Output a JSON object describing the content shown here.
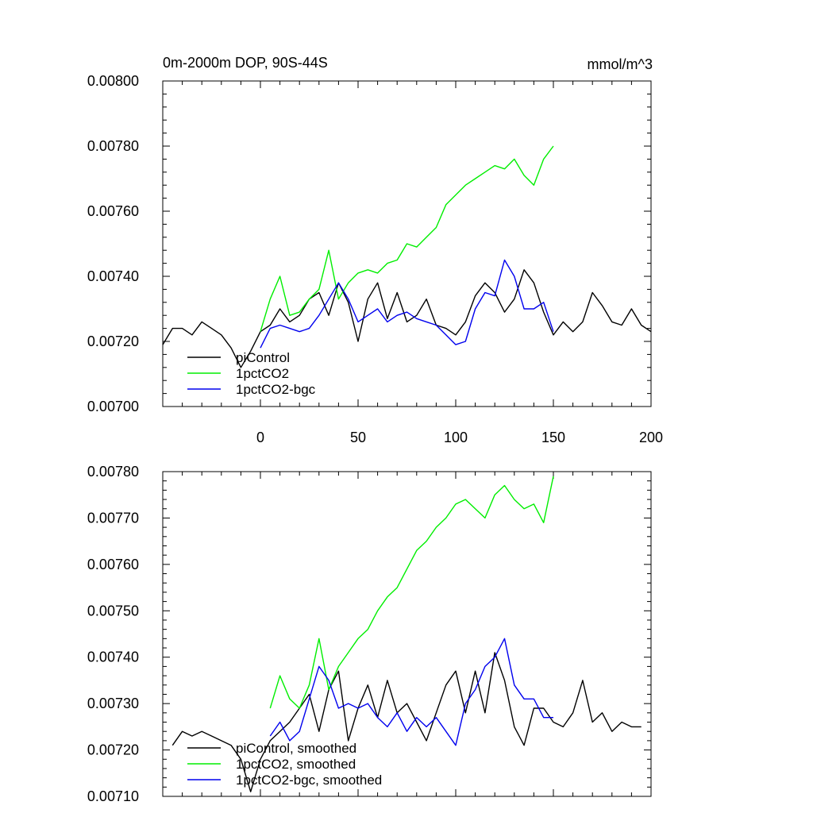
{
  "chart_data": [
    {
      "type": "line",
      "title": "0m-2000m DOP, 90S-44S",
      "units": "mmol/m^3",
      "xlim": [
        -50,
        200
      ],
      "ylim": [
        0.007,
        0.008
      ],
      "xticks": [
        0,
        50,
        100,
        150,
        200
      ],
      "xtick_labels": [
        "0",
        "50",
        "100",
        "150",
        "200"
      ],
      "yticks": [
        0.007,
        0.0072,
        0.0074,
        0.0076,
        0.0078,
        0.008
      ],
      "ytick_labels": [
        "0.00700",
        "0.00720",
        "0.00740",
        "0.00760",
        "0.00780",
        "0.00800"
      ],
      "legend_location": "lower-left",
      "series": [
        {
          "name": "piControl",
          "color": "#000000",
          "x": [
            -50,
            -45,
            -40,
            -35,
            -30,
            -25,
            -20,
            -15,
            -10,
            -5,
            0,
            5,
            10,
            15,
            20,
            25,
            30,
            35,
            40,
            45,
            50,
            55,
            60,
            65,
            70,
            75,
            80,
            85,
            90,
            95,
            100,
            105,
            110,
            115,
            120,
            125,
            130,
            135,
            140,
            145,
            150,
            155,
            160,
            165,
            170,
            175,
            180,
            185,
            190,
            195,
            200
          ],
          "values": [
            0.00719,
            0.00724,
            0.00724,
            0.00722,
            0.00726,
            0.00724,
            0.00722,
            0.00718,
            0.00712,
            0.00717,
            0.00723,
            0.00725,
            0.0073,
            0.00726,
            0.00728,
            0.00733,
            0.00735,
            0.00728,
            0.00738,
            0.00732,
            0.0072,
            0.00733,
            0.00738,
            0.00727,
            0.00735,
            0.00726,
            0.00728,
            0.00733,
            0.00725,
            0.00724,
            0.00722,
            0.00726,
            0.00734,
            0.00738,
            0.00735,
            0.00729,
            0.00733,
            0.00742,
            0.00738,
            0.00729,
            0.00722,
            0.00726,
            0.00723,
            0.00726,
            0.00735,
            0.00731,
            0.00726,
            0.00725,
            0.0073,
            0.00725,
            0.00723
          ]
        },
        {
          "name": "1pctCO2",
          "color": "#00ee00",
          "x": [
            0,
            5,
            10,
            15,
            20,
            25,
            30,
            35,
            40,
            45,
            50,
            55,
            60,
            65,
            70,
            75,
            80,
            85,
            90,
            95,
            100,
            105,
            110,
            115,
            120,
            125,
            130,
            135,
            140,
            145,
            150
          ],
          "values": [
            0.00723,
            0.00733,
            0.0074,
            0.00728,
            0.00729,
            0.00733,
            0.00736,
            0.00748,
            0.00733,
            0.00738,
            0.00741,
            0.00742,
            0.00741,
            0.00744,
            0.00745,
            0.0075,
            0.00749,
            0.00752,
            0.00755,
            0.00762,
            0.00765,
            0.00768,
            0.0077,
            0.00772,
            0.00774,
            0.00773,
            0.00776,
            0.00771,
            0.00768,
            0.00776,
            0.0078
          ]
        },
        {
          "name": "1pctCO2-bgc",
          "color": "#0000ee",
          "x": [
            0,
            5,
            10,
            15,
            20,
            25,
            30,
            35,
            40,
            45,
            50,
            55,
            60,
            65,
            70,
            75,
            80,
            85,
            90,
            95,
            100,
            105,
            110,
            115,
            120,
            125,
            130,
            135,
            140,
            145,
            150
          ],
          "values": [
            0.00718,
            0.00724,
            0.00725,
            0.00724,
            0.00723,
            0.00724,
            0.00728,
            0.00733,
            0.00738,
            0.00733,
            0.00726,
            0.00728,
            0.0073,
            0.00726,
            0.00728,
            0.00729,
            0.00727,
            0.00726,
            0.00725,
            0.00722,
            0.00719,
            0.0072,
            0.0073,
            0.00735,
            0.00734,
            0.00745,
            0.0074,
            0.0073,
            0.0073,
            0.00732,
            0.00723
          ]
        }
      ]
    },
    {
      "type": "line",
      "title": "",
      "xlim": [
        -50,
        200
      ],
      "ylim": [
        0.0071,
        0.0078
      ],
      "yticks": [
        0.0071,
        0.0072,
        0.0073,
        0.0074,
        0.0075,
        0.0076,
        0.0077,
        0.0078
      ],
      "ytick_labels": [
        "0.00710",
        "0.00720",
        "0.00730",
        "0.00740",
        "0.00750",
        "0.00760",
        "0.00770",
        "0.00780"
      ],
      "legend_location": "lower-left",
      "series": [
        {
          "name": "piControl, smoothed",
          "color": "#000000",
          "x": [
            -45,
            -40,
            -35,
            -30,
            -25,
            -20,
            -15,
            -10,
            -5,
            0,
            5,
            10,
            15,
            20,
            25,
            30,
            35,
            40,
            45,
            50,
            55,
            60,
            65,
            70,
            75,
            80,
            85,
            90,
            95,
            100,
            105,
            110,
            115,
            120,
            125,
            130,
            135,
            140,
            145,
            150,
            155,
            160,
            165,
            170,
            175,
            180,
            185,
            190,
            195
          ],
          "values": [
            0.00721,
            0.00724,
            0.00723,
            0.00724,
            0.00723,
            0.00722,
            0.00721,
            0.00718,
            0.00711,
            0.00718,
            0.00722,
            0.00724,
            0.00726,
            0.00729,
            0.00732,
            0.00724,
            0.00733,
            0.00737,
            0.00722,
            0.00729,
            0.00734,
            0.00727,
            0.00735,
            0.00728,
            0.0073,
            0.00726,
            0.00722,
            0.00728,
            0.00734,
            0.00737,
            0.00728,
            0.00737,
            0.00728,
            0.00741,
            0.00735,
            0.00725,
            0.00721,
            0.00729,
            0.00729,
            0.00726,
            0.00725,
            0.00728,
            0.00735,
            0.00726,
            0.00728,
            0.00724,
            0.00726,
            0.00725,
            0.00725
          ]
        },
        {
          "name": "1pctCO2, smoothed",
          "color": "#00ee00",
          "x": [
            5,
            10,
            15,
            20,
            25,
            30,
            35,
            40,
            45,
            50,
            55,
            60,
            65,
            70,
            75,
            80,
            85,
            90,
            95,
            100,
            105,
            110,
            115,
            120,
            125,
            130,
            135,
            140,
            145,
            150
          ],
          "values": [
            0.00729,
            0.00736,
            0.00731,
            0.00729,
            0.00734,
            0.00744,
            0.00733,
            0.00738,
            0.00741,
            0.00744,
            0.00746,
            0.0075,
            0.00753,
            0.00755,
            0.00759,
            0.00763,
            0.00765,
            0.00768,
            0.0077,
            0.00773,
            0.00774,
            0.00772,
            0.0077,
            0.00775,
            0.00777,
            0.00774,
            0.00772,
            0.00773,
            0.00769,
            0.00779
          ]
        },
        {
          "name": "1pctCO2-bgc, smoothed",
          "color": "#0000ee",
          "x": [
            5,
            10,
            15,
            20,
            25,
            30,
            35,
            40,
            45,
            50,
            55,
            60,
            65,
            70,
            75,
            80,
            85,
            90,
            95,
            100,
            105,
            110,
            115,
            120,
            125,
            130,
            135,
            140,
            145,
            150
          ],
          "values": [
            0.00723,
            0.00726,
            0.00722,
            0.00724,
            0.00731,
            0.00738,
            0.00735,
            0.00729,
            0.0073,
            0.00729,
            0.0073,
            0.00727,
            0.00725,
            0.00728,
            0.00724,
            0.00727,
            0.00725,
            0.00727,
            0.00724,
            0.00721,
            0.0073,
            0.00733,
            0.00738,
            0.0074,
            0.00744,
            0.00734,
            0.00731,
            0.00731,
            0.00727,
            0.00727
          ]
        }
      ]
    }
  ]
}
